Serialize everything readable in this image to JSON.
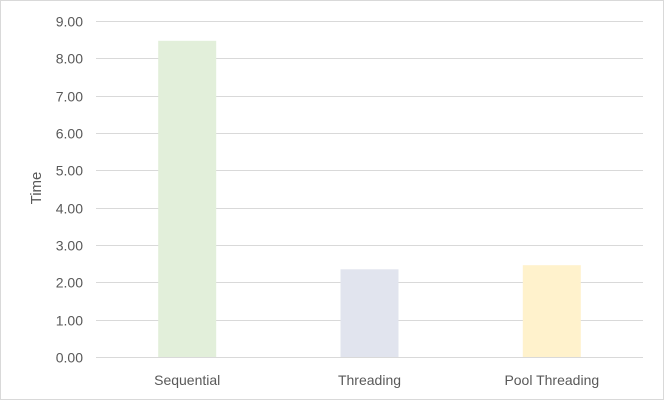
{
  "chart_data": {
    "type": "bar",
    "title": "",
    "xlabel": "",
    "ylabel": "Time",
    "categories": [
      "Sequential",
      "Threading",
      "Pool Threading"
    ],
    "values": [
      8.47,
      2.35,
      2.46
    ],
    "bar_colors": [
      "#e2efda",
      "#e1e4ee",
      "#fff2cc"
    ],
    "ylim": [
      0,
      9
    ],
    "yticks": [
      "0.00",
      "1.00",
      "2.00",
      "3.00",
      "4.00",
      "5.00",
      "6.00",
      "7.00",
      "8.00",
      "9.00"
    ],
    "grid": true,
    "grid_color": "#d9d9d9",
    "text_color": "#595959",
    "legend": "none"
  }
}
